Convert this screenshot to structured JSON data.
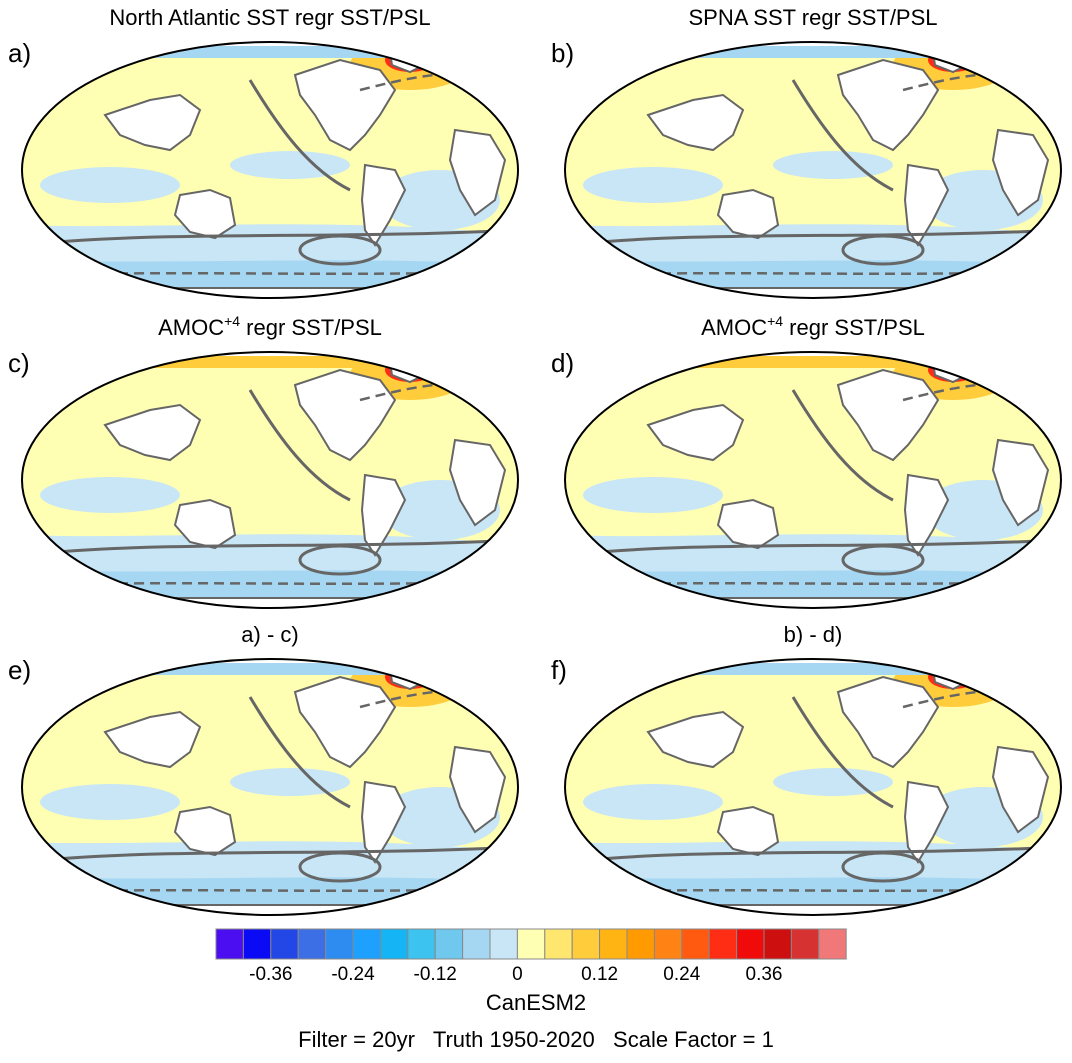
{
  "panels": [
    {
      "label": "a)",
      "title": "North Atlantic SST regr SST/PSL",
      "title_sup": ""
    },
    {
      "label": "b)",
      "title": "SPNA SST regr SST/PSL",
      "title_sup": ""
    },
    {
      "label": "c)",
      "title": "AMOC",
      "title_sup": "+4",
      "title_suffix": " regr SST/PSL"
    },
    {
      "label": "d)",
      "title": "AMOC",
      "title_sup": "+4",
      "title_suffix": " regr SST/PSL"
    },
    {
      "label": "e)",
      "title": "a) - c)",
      "title_sup": ""
    },
    {
      "label": "f)",
      "title": "b) - d)",
      "title_sup": ""
    }
  ],
  "colorbar": {
    "colors": [
      "#4b0ef0",
      "#0a0af5",
      "#2346e6",
      "#3c6ee6",
      "#2e8cf0",
      "#1ea0ff",
      "#14b4f5",
      "#3cc3f0",
      "#70c8ef",
      "#a6d7f2",
      "#c8e6f5",
      "#ffffb4",
      "#ffe66e",
      "#ffcd3c",
      "#ffb414",
      "#ff9b00",
      "#ff8214",
      "#ff5a0f",
      "#ff2d14",
      "#f00a0a",
      "#cd0f0f",
      "#d73232",
      "#f07878"
    ],
    "ticks": [
      "-0.36",
      "-0.24",
      "-0.12",
      "0",
      "0.12",
      "0.24",
      "0.36"
    ]
  },
  "model": "CanESM2",
  "footer": "Filter = 20yr   Truth 1950-2020   Scale Factor = 1"
}
